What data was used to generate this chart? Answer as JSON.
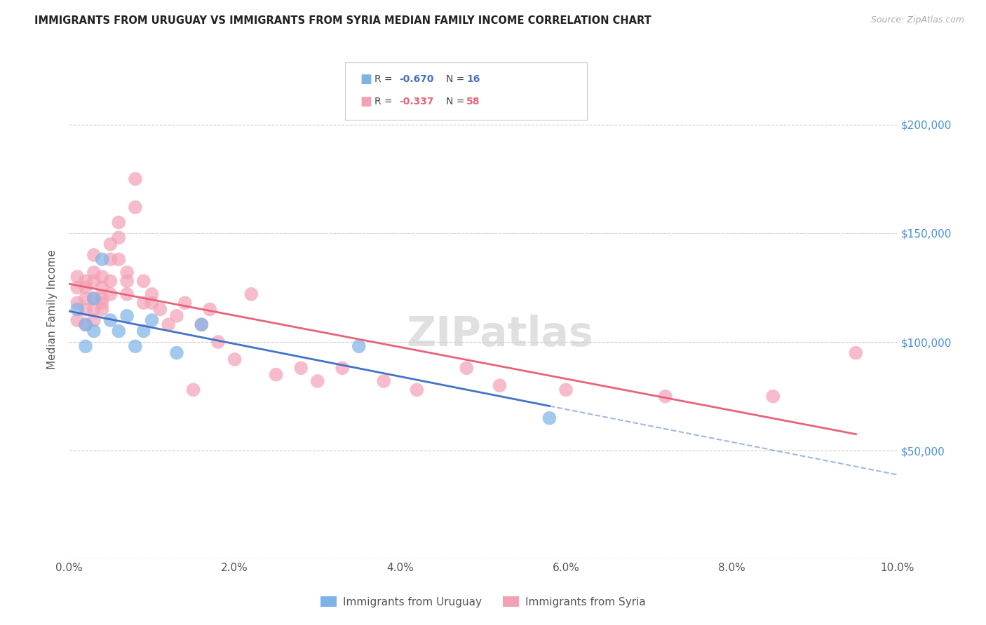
{
  "title": "IMMIGRANTS FROM URUGUAY VS IMMIGRANTS FROM SYRIA MEDIAN FAMILY INCOME CORRELATION CHART",
  "source": "Source: ZipAtlas.com",
  "ylabel": "Median Family Income",
  "xlim": [
    0,
    0.1
  ],
  "ylim": [
    0,
    230000
  ],
  "xtick_labels": [
    "0.0%",
    "2.0%",
    "4.0%",
    "6.0%",
    "8.0%",
    "10.0%"
  ],
  "xtick_vals": [
    0.0,
    0.02,
    0.04,
    0.06,
    0.08,
    0.1
  ],
  "ytick_vals": [
    0,
    50000,
    100000,
    150000,
    200000
  ],
  "right_ytick_labels": [
    "",
    "$50,000",
    "$100,000",
    "$150,000",
    "$200,000"
  ],
  "legend_label1": "Immigrants from Uruguay",
  "legend_label2": "Immigrants from Syria",
  "R_uruguay": -0.67,
  "N_uruguay": 16,
  "R_syria": -0.337,
  "N_syria": 58,
  "color_uruguay": "#7EB3E8",
  "color_syria": "#F4A0B5",
  "line_color_uruguay": "#4472C4",
  "line_color_syria": "#E8637A",
  "watermark": "ZIPatlas",
  "uruguay_x": [
    0.001,
    0.002,
    0.002,
    0.003,
    0.003,
    0.004,
    0.005,
    0.006,
    0.007,
    0.008,
    0.009,
    0.01,
    0.013,
    0.016,
    0.035,
    0.058
  ],
  "uruguay_y": [
    115000,
    108000,
    98000,
    120000,
    105000,
    138000,
    110000,
    105000,
    112000,
    98000,
    105000,
    110000,
    95000,
    108000,
    98000,
    65000
  ],
  "syria_x": [
    0.001,
    0.001,
    0.001,
    0.001,
    0.002,
    0.002,
    0.002,
    0.002,
    0.002,
    0.003,
    0.003,
    0.003,
    0.003,
    0.003,
    0.003,
    0.004,
    0.004,
    0.004,
    0.004,
    0.004,
    0.005,
    0.005,
    0.005,
    0.005,
    0.006,
    0.006,
    0.006,
    0.007,
    0.007,
    0.007,
    0.008,
    0.008,
    0.009,
    0.009,
    0.01,
    0.01,
    0.011,
    0.012,
    0.013,
    0.014,
    0.015,
    0.016,
    0.017,
    0.018,
    0.02,
    0.022,
    0.025,
    0.028,
    0.03,
    0.033,
    0.038,
    0.042,
    0.048,
    0.052,
    0.06,
    0.072,
    0.085,
    0.095
  ],
  "syria_y": [
    125000,
    130000,
    118000,
    110000,
    125000,
    120000,
    128000,
    115000,
    108000,
    140000,
    132000,
    128000,
    120000,
    115000,
    110000,
    130000,
    125000,
    120000,
    118000,
    115000,
    145000,
    138000,
    128000,
    122000,
    155000,
    148000,
    138000,
    132000,
    128000,
    122000,
    175000,
    162000,
    128000,
    118000,
    122000,
    118000,
    115000,
    108000,
    112000,
    118000,
    78000,
    108000,
    115000,
    100000,
    92000,
    122000,
    85000,
    88000,
    82000,
    88000,
    82000,
    78000,
    88000,
    80000,
    78000,
    75000,
    75000,
    95000
  ]
}
